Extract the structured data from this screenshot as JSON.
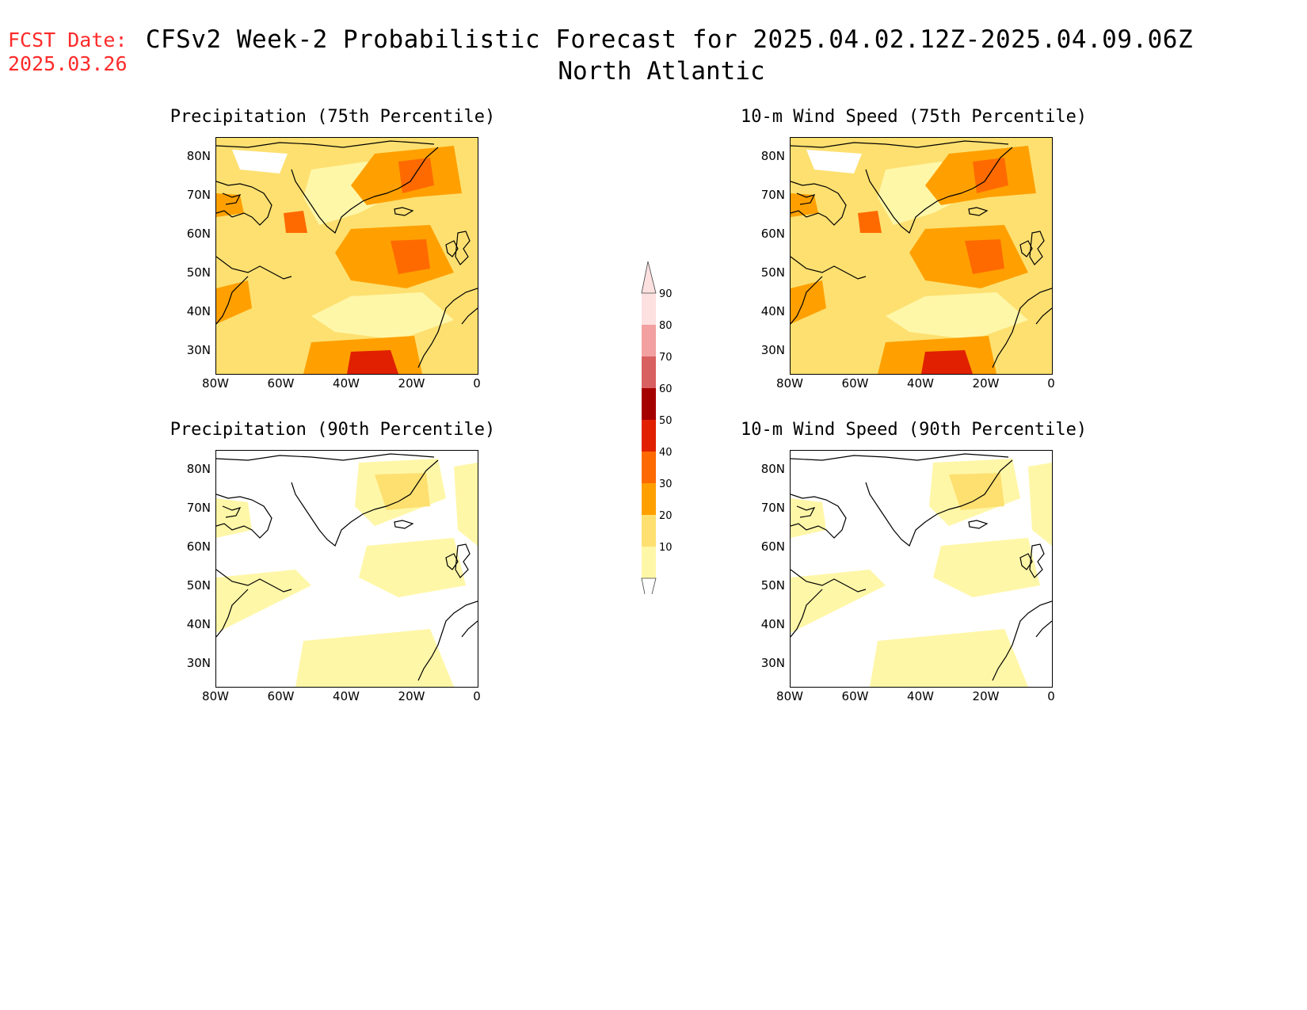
{
  "header": {
    "fcst_label": "FCST Date:",
    "fcst_date": "2025.03.26",
    "title": "CFSv2 Week-2 Probabilistic Forecast for 2025.04.02.12Z-2025.04.09.06Z",
    "subtitle": "North Atlantic"
  },
  "axes": {
    "lat_labels": [
      "80N",
      "70N",
      "60N",
      "50N",
      "40N",
      "30N"
    ],
    "lon_labels": [
      "80W",
      "60W",
      "40W",
      "20W",
      "0"
    ]
  },
  "panels": [
    {
      "title": "Precipitation (75th Percentile)",
      "intensity": "high"
    },
    {
      "title": "10-m Wind Speed (75th Percentile)",
      "intensity": "high"
    },
    {
      "title": "Precipitation (90th Percentile)",
      "intensity": "low"
    },
    {
      "title": "10-m Wind Speed (90th Percentile)",
      "intensity": "low"
    }
  ],
  "colorbar": {
    "levels": [
      "90",
      "80",
      "70",
      "60",
      "50",
      "40",
      "30",
      "20",
      "10"
    ],
    "colors": [
      "#fde0e0",
      "#f2a0a0",
      "#d96060",
      "#a50000",
      "#e02000",
      "#ff6a00",
      "#ffa000",
      "#fde070",
      "#fff7a8"
    ]
  }
}
